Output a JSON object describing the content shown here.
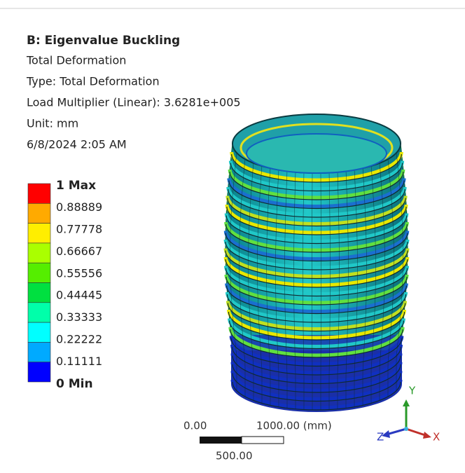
{
  "header": {
    "title": "B: Eigenvalue Buckling",
    "lines": [
      "Total Deformation",
      "Type: Total Deformation",
      "Load Multiplier (Linear): 3.6281e+005",
      "Unit: mm",
      "6/8/2024 2:05 AM"
    ]
  },
  "legend": {
    "labels": [
      "1 Max",
      "0.88889",
      "0.77778",
      "0.66667",
      "0.55556",
      "0.44445",
      "0.33333",
      "0.22222",
      "0.11111",
      "0 Min"
    ],
    "colors": [
      "#ff0000",
      "#ffaa00",
      "#ffee00",
      "#aaff00",
      "#55ee00",
      "#00e040",
      "#00ffaa",
      "#00ffff",
      "#00aaff",
      "#0000ff"
    ]
  },
  "scale_bar": {
    "start": "0.00",
    "end": "1000.00 (mm)",
    "mid": "500.00"
  },
  "triad": {
    "x": "X",
    "y": "Y",
    "z": "Z"
  }
}
